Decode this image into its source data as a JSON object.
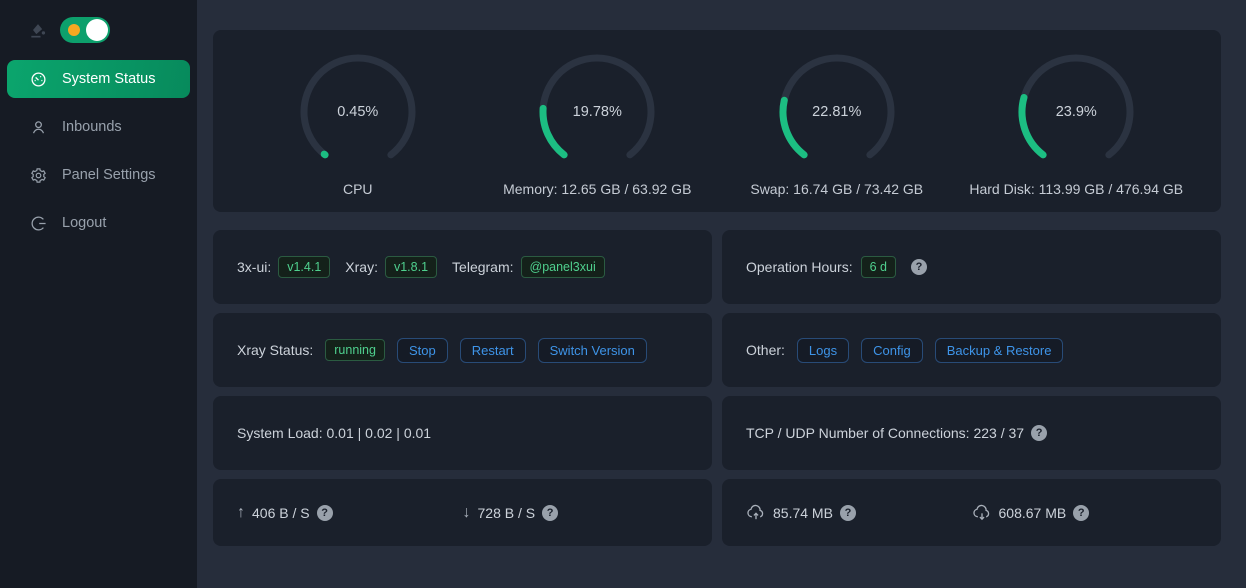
{
  "colors": {
    "accent_green": "#1cbe82",
    "menu_active_green": "#0ba56d",
    "tag_green_text": "#4fd08e",
    "button_blue": "#3e94e8",
    "toggle_green": "#0da06c",
    "sun_orange": "#f6a822",
    "page_bg": "#262d3b",
    "card_bg": "#1a202b",
    "sidebar_bg": "#161b24"
  },
  "glyphs": {
    "arrow_up": "↑",
    "arrow_down": "↓",
    "question": "?"
  },
  "sidebar": {
    "theme_toggle": {
      "checked": true
    },
    "items": [
      {
        "label": "System Status",
        "icon": "dashboard-icon",
        "active": true
      },
      {
        "label": "Inbounds",
        "icon": "user-icon",
        "active": false
      },
      {
        "label": "Panel Settings",
        "icon": "gear-icon",
        "active": false
      },
      {
        "label": "Logout",
        "icon": "logout-icon",
        "active": false
      }
    ]
  },
  "gauges": [
    {
      "percent": 0.45,
      "percent_label": "0.45%",
      "label": "CPU"
    },
    {
      "percent": 19.78,
      "percent_label": "19.78%",
      "label": "Memory: 12.65 GB / 63.92 GB"
    },
    {
      "percent": 22.81,
      "percent_label": "22.81%",
      "label": "Swap: 16.74 GB / 73.42 GB"
    },
    {
      "percent": 23.9,
      "percent_label": "23.9%",
      "label": "Hard Disk: 113.99 GB / 476.94 GB"
    }
  ],
  "cards": {
    "versions": {
      "panel_label": "3x-ui:",
      "panel_tag": "v1.4.1",
      "xray_label": "Xray:",
      "xray_tag": "v1.8.1",
      "telegram_label": "Telegram:",
      "telegram_tag": "@panel3xui"
    },
    "operation_hours": {
      "label": "Operation Hours:",
      "value": "6 d"
    },
    "xray_status": {
      "label": "Xray Status:",
      "status": "running",
      "buttons": [
        "Stop",
        "Restart",
        "Switch Version"
      ]
    },
    "other": {
      "label": "Other:",
      "buttons": [
        "Logs",
        "Config",
        "Backup & Restore"
      ]
    },
    "system_load": {
      "text": "System Load: 0.01 | 0.02 | 0.01"
    },
    "connections": {
      "text": "TCP / UDP Number of Connections: 223 / 37"
    },
    "speed": {
      "upload": "406 B / S",
      "download": "728 B / S"
    },
    "traffic": {
      "upload_total": "85.74 MB",
      "download_total": "608.67 MB"
    }
  }
}
